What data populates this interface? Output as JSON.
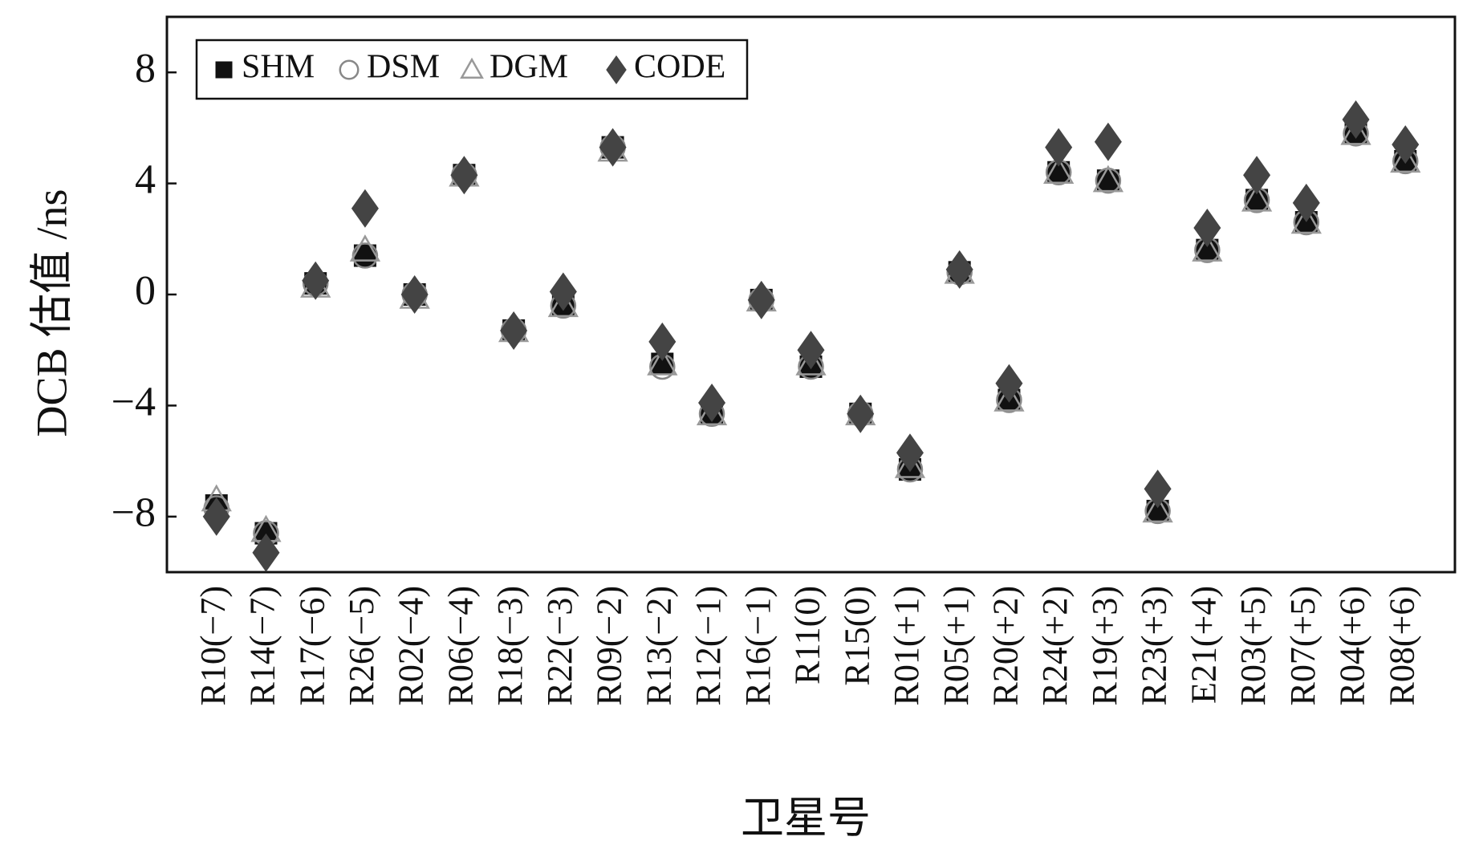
{
  "chart_data": {
    "type": "scatter",
    "y_label": "DCB 估值 /ns",
    "x_label": "卫星号",
    "categories": [
      "R10(−7)",
      "R14(−7)",
      "R17(−6)",
      "R26(−5)",
      "R02(−4)",
      "R06(−4)",
      "R18(−3)",
      "R22(−3)",
      "R09(−2)",
      "R13(−2)",
      "R12(−1)",
      "R16(−1)",
      "R11(0)",
      "R15(0)",
      "R01(+1)",
      "R05(+1)",
      "R20(+2)",
      "R24(+2)",
      "R19(+3)",
      "R23(+3)",
      "E21(+4)",
      "R03(+5)",
      "R07(+5)",
      "R04(+6)",
      "R08(+6)"
    ],
    "series": [
      {
        "name": "SHM",
        "color": "#111111",
        "marker": "square",
        "values": [
          -7.6,
          -8.6,
          0.4,
          1.4,
          0.0,
          4.3,
          -1.3,
          -0.4,
          5.3,
          -2.5,
          -4.3,
          -0.2,
          -2.6,
          -4.3,
          -6.3,
          0.8,
          -3.8,
          4.4,
          4.1,
          -7.8,
          1.6,
          3.4,
          2.6,
          5.8,
          4.8
        ]
      },
      {
        "name": "DSM",
        "color": "#888888",
        "marker": "circle",
        "values": [
          -7.7,
          -8.6,
          0.4,
          1.4,
          0.0,
          4.3,
          -1.3,
          -0.4,
          5.3,
          -2.6,
          -4.3,
          -0.2,
          -2.6,
          -4.3,
          -6.3,
          0.8,
          -3.8,
          4.4,
          4.1,
          -7.8,
          1.6,
          3.4,
          2.6,
          5.8,
          4.8
        ]
      },
      {
        "name": "DGM",
        "color": "#999999",
        "marker": "triangle",
        "values": [
          -7.4,
          -8.5,
          0.3,
          1.6,
          -0.1,
          4.3,
          -1.3,
          -0.4,
          5.2,
          -2.5,
          -4.3,
          -0.2,
          -2.5,
          -4.3,
          -6.2,
          0.8,
          -3.8,
          4.4,
          4.1,
          -7.8,
          1.6,
          3.4,
          2.6,
          5.8,
          4.8
        ]
      },
      {
        "name": "CODE",
        "color": "#444444",
        "marker": "diamond",
        "values": [
          -8.0,
          -9.3,
          0.5,
          3.1,
          0.0,
          4.3,
          -1.3,
          0.1,
          5.3,
          -1.7,
          -3.9,
          -0.2,
          -2.0,
          -4.3,
          -5.7,
          0.9,
          -3.2,
          5.3,
          5.5,
          -7.0,
          2.4,
          4.3,
          3.3,
          6.3,
          5.4
        ]
      }
    ],
    "ylim": [
      -10,
      10
    ],
    "yticks": [
      {
        "value": -8,
        "label": "−8"
      },
      {
        "value": -4,
        "label": "−4"
      },
      0,
      4,
      8
    ],
    "legend": "upper left"
  }
}
